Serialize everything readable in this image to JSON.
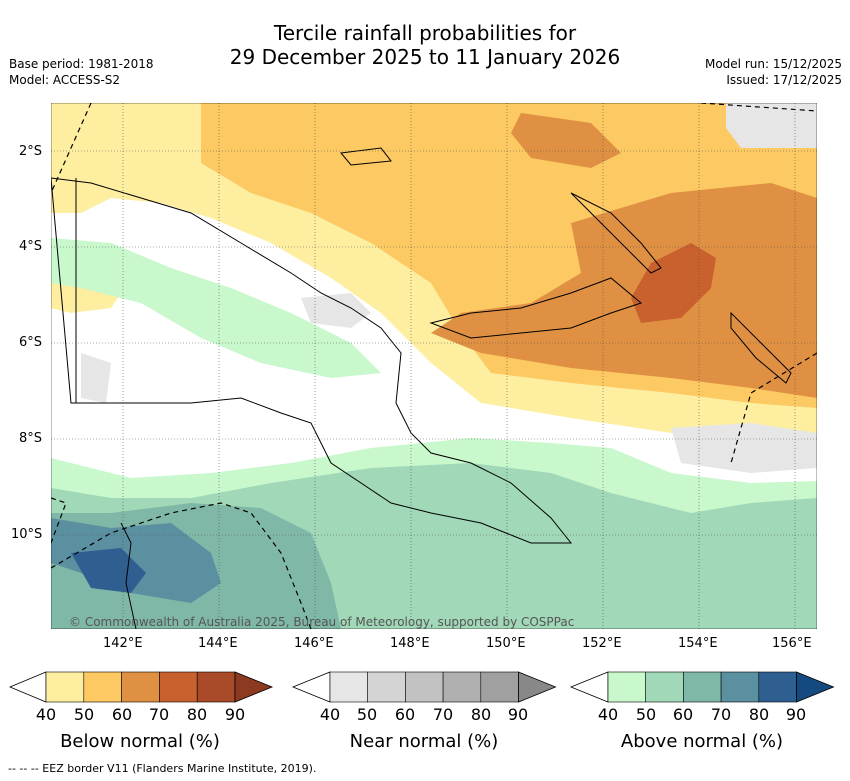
{
  "title": {
    "line1": "Tercile rainfall probabilities for",
    "line2": "29 December 2025 to 11 January 2026"
  },
  "meta": {
    "base_period": "Base period: 1981-2018",
    "model": "Model: ACCESS-S2",
    "model_run": "Model run: 15/12/2025",
    "issued": "Issued: 17/12/2025"
  },
  "map": {
    "lat_ticks": [
      "2°S",
      "4°S",
      "6°S",
      "8°S",
      "10°S"
    ],
    "lon_ticks": [
      "142°E",
      "144°E",
      "146°E",
      "148°E",
      "150°E",
      "152°E",
      "154°E",
      "156°E"
    ],
    "credit": "© Commonwealth of Australia 2025, Bureau of Meteorology, supported by COSPPac"
  },
  "colorbars": [
    {
      "label": "Below normal (%)",
      "ticks": [
        "40",
        "50",
        "60",
        "70",
        "80",
        "90"
      ],
      "colors": [
        "#fdeea0",
        "#fcc962",
        "#e09042",
        "#c8612e",
        "#a94a28",
        "#8c3a20"
      ]
    },
    {
      "label": "Near normal (%)",
      "ticks": [
        "40",
        "50",
        "60",
        "70",
        "80",
        "90"
      ],
      "colors": [
        "#e6e6e6",
        "#d4d4d4",
        "#c2c2c2",
        "#b0b0b0",
        "#a0a0a0",
        "#888888"
      ]
    },
    {
      "label": "Above normal (%)",
      "ticks": [
        "40",
        "50",
        "60",
        "70",
        "80",
        "90"
      ],
      "colors": [
        "#c8f8cc",
        "#a0d8b8",
        "#80b8a8",
        "#5a90a0",
        "#2f5e90",
        "#154a80"
      ]
    }
  ],
  "footer": "-- -- -- EEZ border V11 (Flanders Marine Institute, 2019)."
}
